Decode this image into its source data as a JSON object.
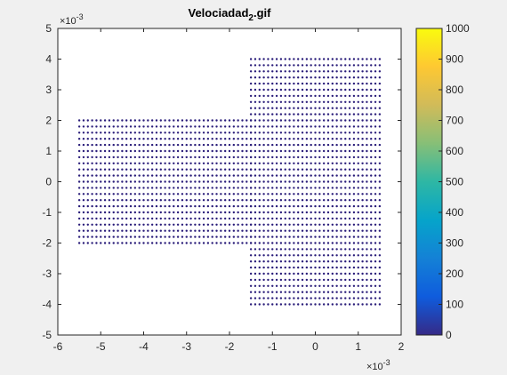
{
  "chart_data": {
    "type": "scatter",
    "title": "Velociadad",
    "title_subscript": "2",
    "title_suffix": ".gif",
    "xlim": [
      -0.006,
      0.002
    ],
    "ylim": [
      -0.005,
      0.005
    ],
    "x_exponent_label": "×10",
    "x_exponent_power": "-3",
    "y_exponent_label": "×10",
    "y_exponent_power": "-3",
    "xticks": [
      -6,
      -5,
      -4,
      -3,
      -2,
      -1,
      0,
      1,
      2
    ],
    "yticks": [
      5,
      4,
      3,
      2,
      1,
      0,
      -1,
      -2,
      -3,
      -4,
      -5
    ],
    "grid": false,
    "marker_color": "#2a1d7a",
    "regions": [
      {
        "name": "left-block",
        "x_range": [
          -0.0055,
          -0.0015
        ],
        "y_range": [
          -0.002,
          0.002
        ],
        "y_step": 0.0002,
        "x_step": 0.0001
      },
      {
        "name": "right-block",
        "x_range": [
          -0.0015,
          0.0015
        ],
        "y_range": [
          -0.004,
          0.004
        ],
        "y_step": 0.0002,
        "x_step": 0.0001
      }
    ],
    "colorbar": {
      "min": 0,
      "max": 1000,
      "ticks": [
        1000,
        900,
        800,
        700,
        600,
        500,
        400,
        300,
        200,
        100,
        0
      ],
      "colormap": "parula",
      "colormap_stops": [
        "#352a87",
        "#0f5cdd",
        "#1481d6",
        "#06a4ca",
        "#2eb7a4",
        "#87bf77",
        "#d1bb59",
        "#fec832",
        "#f9fb0e"
      ]
    }
  }
}
